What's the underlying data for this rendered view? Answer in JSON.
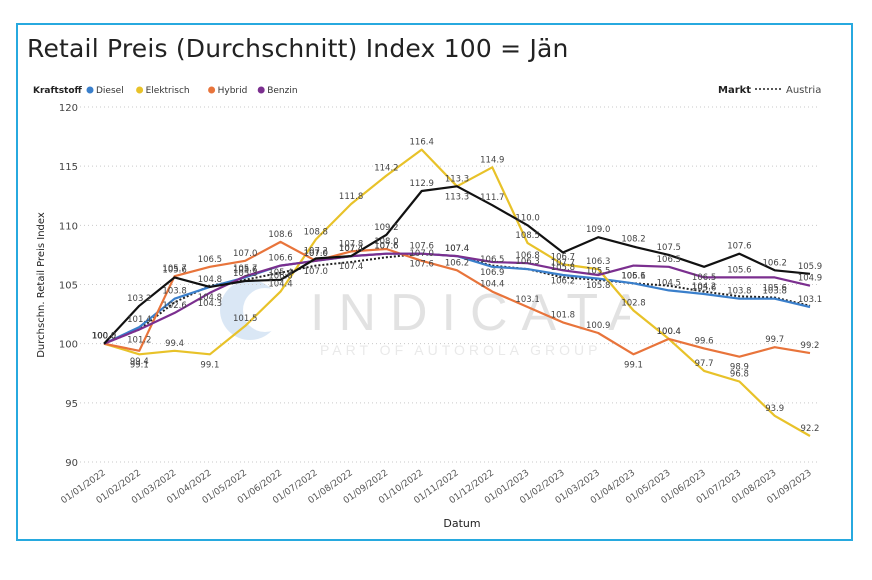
{
  "title": "Retail Preis (Durchschnitt) Index 100 = Jän",
  "legend": {
    "title": "Kraftstoff",
    "items": [
      {
        "label": "Diesel",
        "color": "#3a7fcb"
      },
      {
        "label": "Elektrisch",
        "color": "#e8c229"
      },
      {
        "label": "Hybrid",
        "color": "#e8743b"
      },
      {
        "label": "Benzin",
        "color": "#7b2f8f"
      }
    ]
  },
  "market_legend": {
    "title": "Markt",
    "label": "Austria"
  },
  "watermark": {
    "brand": "INDICATA",
    "tagline": "PART OF AUTOROLA GROUP"
  },
  "chart_data": {
    "type": "line",
    "title": "Retail Preis (Durchschnitt) Index 100 = Jän",
    "xlabel": "Datum",
    "ylabel": "Durchschn. Retail Preis Index",
    "ylim": [
      90,
      120
    ],
    "yticks": [
      90,
      95,
      100,
      105,
      110,
      115,
      120
    ],
    "grid": true,
    "legend_position": "top-left",
    "categories": [
      "01/01/2022",
      "01/02/2022",
      "01/03/2022",
      "01/04/2022",
      "01/05/2022",
      "01/06/2022",
      "01/07/2022",
      "01/08/2022",
      "01/09/2022",
      "01/10/2022",
      "01/11/2022",
      "01/12/2022",
      "01/01/2023",
      "01/02/2023",
      "01/03/2023",
      "01/04/2023",
      "01/05/2023",
      "01/06/2023",
      "01/07/2023",
      "01/08/2023",
      "01/09/2023"
    ],
    "series": [
      {
        "name": "Austria",
        "color": "#222222",
        "dashed": true,
        "show_labels": false,
        "values": [
          100.0,
          101.2,
          103.5,
          104.9,
          105.4,
          106.0,
          106.6,
          106.9,
          107.3,
          107.6,
          107.4,
          106.6,
          106.3,
          105.6,
          105.4,
          105.1,
          104.9,
          104.4,
          104.0,
          103.9,
          103.2
        ]
      },
      {
        "name": "Diesel",
        "color": "#3a7fcb",
        "show_labels": true,
        "values": [
          100.0,
          101.4,
          103.8,
          104.8,
          105.6,
          106.6,
          107.0,
          107.4,
          107.6,
          107.6,
          107.4,
          106.5,
          106.3,
          105.8,
          105.5,
          105.1,
          104.5,
          104.2,
          103.8,
          103.8,
          103.1
        ]
      },
      {
        "name": "Elektrisch",
        "color": "#e8c229",
        "show_labels": true,
        "values": [
          100.0,
          99.1,
          99.4,
          99.1,
          101.5,
          104.4,
          108.8,
          111.8,
          114.2,
          116.4,
          113.3,
          114.9,
          108.5,
          106.7,
          106.3,
          102.8,
          100.4,
          97.7,
          96.8,
          93.9,
          92.2
        ]
      },
      {
        "name": "Hybrid",
        "color": "#e8743b",
        "show_labels": true,
        "values": [
          100.0,
          99.4,
          105.7,
          106.5,
          107.0,
          108.6,
          107.0,
          107.8,
          108.0,
          107.0,
          106.2,
          104.4,
          103.1,
          101.8,
          100.9,
          99.1,
          100.4,
          99.6,
          98.9,
          99.7,
          99.2
        ]
      },
      {
        "name": "Benzin",
        "color": "#7b2f8f",
        "show_labels": true,
        "values": [
          100.0,
          101.2,
          102.6,
          104.3,
          105.7,
          106.6,
          107.0,
          107.4,
          107.6,
          107.6,
          107.4,
          106.9,
          106.8,
          106.2,
          105.8,
          106.6,
          106.5,
          105.6,
          105.6,
          105.6,
          104.9
        ]
      },
      {
        "name": "",
        "color": "#111111",
        "show_labels": true,
        "values": [
          100.0,
          103.2,
          105.6,
          104.8,
          105.3,
          105.4,
          107.2,
          107.4,
          109.2,
          112.9,
          113.3,
          111.7,
          110.0,
          107.7,
          109.0,
          108.2,
          107.5,
          106.5,
          107.6,
          106.2,
          105.9
        ]
      }
    ]
  }
}
